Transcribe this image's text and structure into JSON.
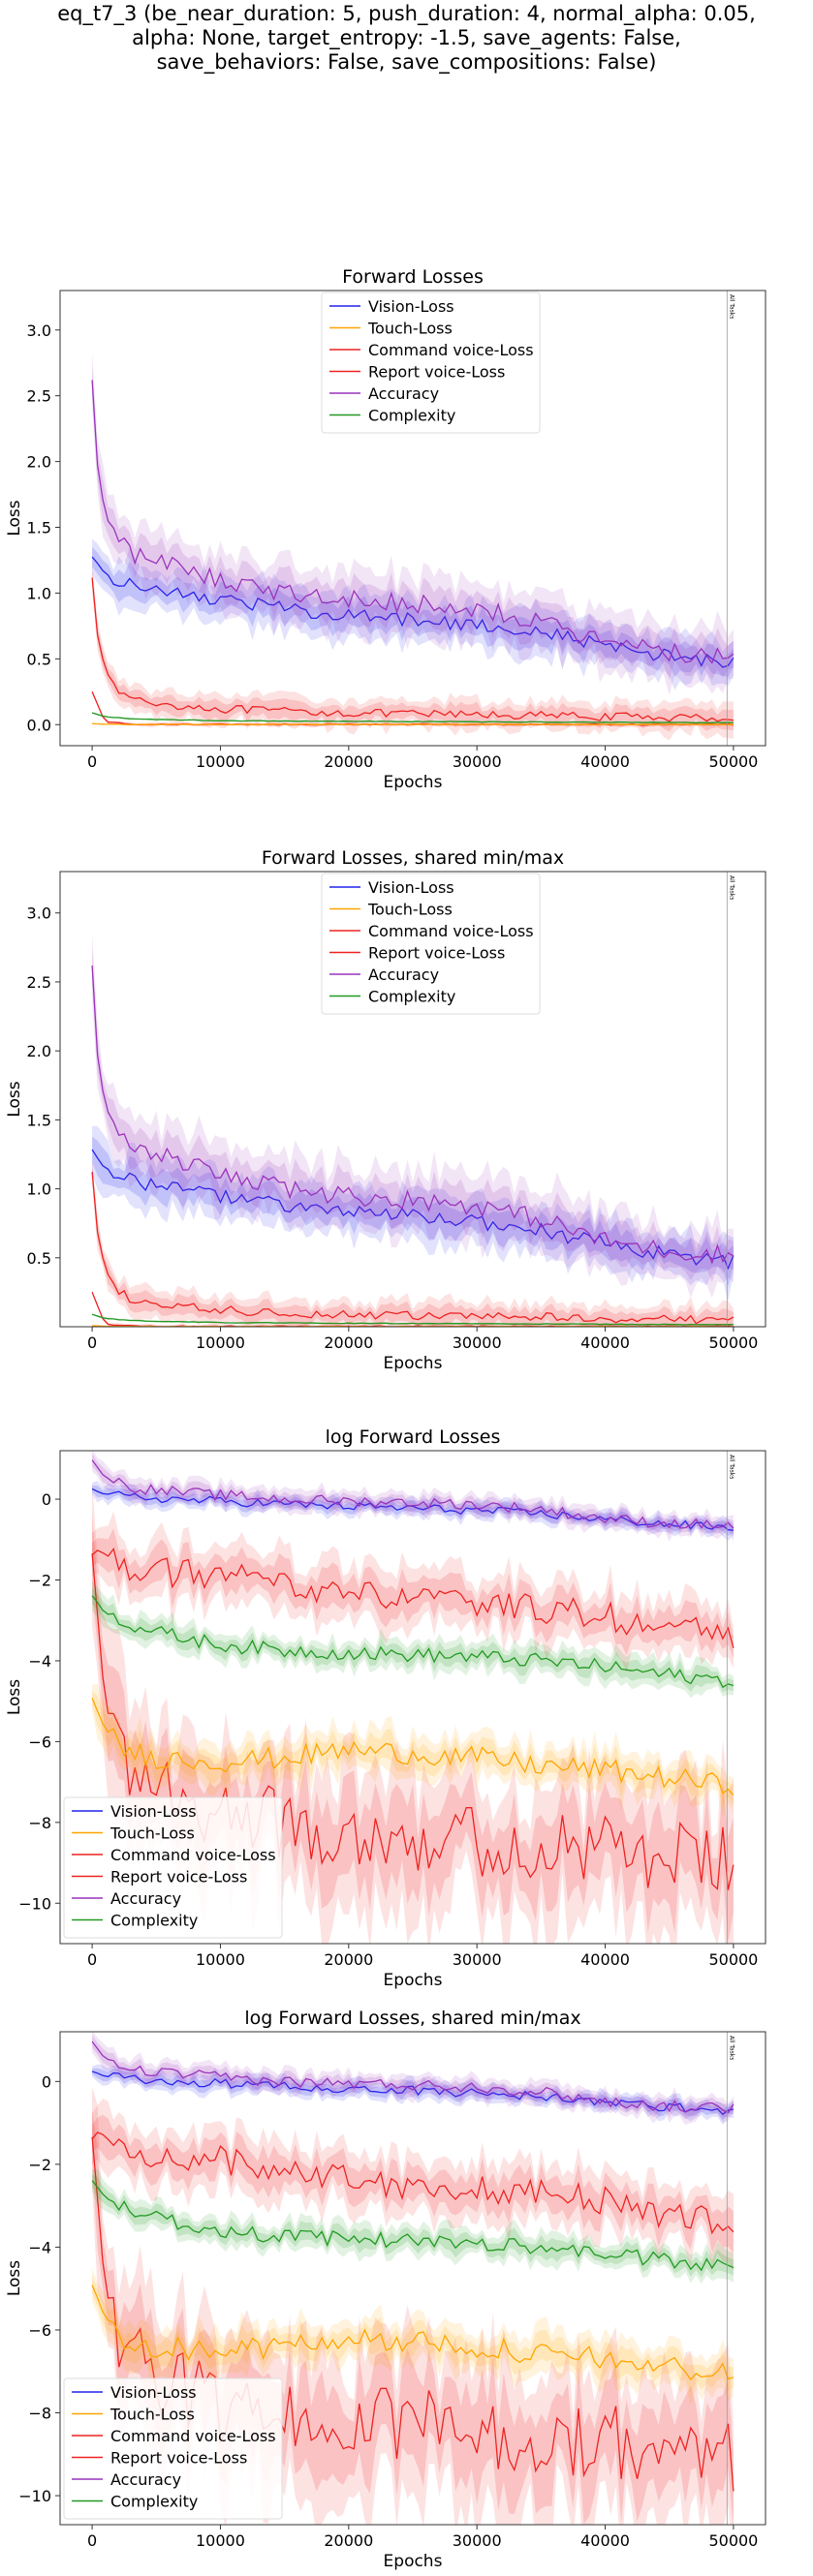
{
  "suptitle": [
    "eq_t7_3 (be_near_duration: 5, push_duration: 4, normal_alpha: 0.05,",
    "alpha: None, target_entropy: -1.5, save_agents: False,",
    "save_behaviors: False, save_compositions: False)"
  ],
  "colors": {
    "vision": "#2222ee",
    "touch": "#ffa500",
    "command": "#ee2222",
    "report": "#ee2222",
    "accuracy": "#9933bb",
    "complexity": "#229922"
  },
  "chart_data": [
    {
      "type": "line",
      "title": "Forward Losses",
      "xlabel": "Epochs",
      "ylabel": "Loss",
      "xlim": [
        -2500,
        52500
      ],
      "ylim": [
        -0.16,
        3.3
      ],
      "xticks": [
        0,
        10000,
        20000,
        30000,
        40000,
        50000
      ],
      "yticks": [
        0.0,
        0.5,
        1.0,
        1.5,
        2.0,
        2.5,
        3.0
      ],
      "ytick_labels": [
        "0.0",
        "0.5",
        "1.0",
        "1.5",
        "2.0",
        "2.5",
        "3.0"
      ],
      "legend_loc": "upper center",
      "vline_label": "All Tasks",
      "vline_x": 49500,
      "log": false,
      "series": [
        {
          "name": "Vision-Loss",
          "key": "vision",
          "x": [
            0,
            1000,
            2500,
            5000,
            10000,
            15000,
            20000,
            25000,
            30000,
            35000,
            40000,
            45000,
            50000
          ],
          "y": [
            1.28,
            1.15,
            1.08,
            1.02,
            0.95,
            0.88,
            0.83,
            0.8,
            0.76,
            0.7,
            0.6,
            0.52,
            0.47
          ],
          "band": 0.15
        },
        {
          "name": "Touch-Loss",
          "key": "touch",
          "x": [
            0,
            1000,
            3000,
            5000,
            10000,
            20000,
            30000,
            40000,
            50000
          ],
          "y": [
            0.008,
            0.003,
            0.002,
            0.0015,
            0.0015,
            0.0013,
            0.0012,
            0.0011,
            0.0009
          ],
          "band": 0.005
        },
        {
          "name": "Command voice-Loss",
          "key": "command",
          "x": [
            0,
            500,
            1500,
            3000,
            5000,
            10000,
            15000,
            20000,
            25000,
            30000,
            35000,
            40000,
            45000,
            50000
          ],
          "y": [
            1.12,
            0.6,
            0.3,
            0.2,
            0.16,
            0.12,
            0.1,
            0.09,
            0.08,
            0.075,
            0.07,
            0.06,
            0.055,
            0.05
          ],
          "band": 0.09
        },
        {
          "name": "Report voice-Loss",
          "key": "report",
          "x": [
            0,
            1000,
            3000,
            5000,
            10000,
            20000,
            30000,
            40000,
            50000
          ],
          "y": [
            0.25,
            0.02,
            0.005,
            0.002,
            0.002,
            0.002,
            0.0015,
            0.0012,
            0.0012
          ],
          "band": 0.012
        },
        {
          "name": "Accuracy",
          "key": "accuracy",
          "x": [
            0,
            500,
            1500,
            3000,
            5000,
            10000,
            15000,
            20000,
            25000,
            30000,
            35000,
            40000,
            45000,
            50000
          ],
          "y": [
            2.62,
            1.85,
            1.45,
            1.3,
            1.25,
            1.1,
            1.0,
            0.95,
            0.92,
            0.88,
            0.78,
            0.62,
            0.55,
            0.52
          ],
          "band": 0.2
        },
        {
          "name": "Complexity",
          "key": "complexity",
          "x": [
            0,
            1000,
            3000,
            5000,
            10000,
            20000,
            30000,
            40000,
            50000
          ],
          "y": [
            0.09,
            0.06,
            0.045,
            0.04,
            0.03,
            0.025,
            0.022,
            0.018,
            0.015
          ],
          "band": 0.006
        }
      ]
    },
    {
      "type": "line",
      "title": "Forward Losses, shared min/max",
      "xlabel": "Epochs",
      "ylabel": "Loss",
      "xlim": [
        -2500,
        52500
      ],
      "ylim": [
        0.0,
        3.3
      ],
      "xticks": [
        0,
        10000,
        20000,
        30000,
        40000,
        50000
      ],
      "yticks": [
        0.5,
        1.0,
        1.5,
        2.0,
        2.5,
        3.0
      ],
      "ytick_labels": [
        "0.5",
        "1.0",
        "1.5",
        "2.0",
        "2.5",
        "3.0"
      ],
      "legend_loc": "upper center",
      "vline_label": "All Tasks",
      "vline_x": 49500,
      "log": false,
      "series": [
        {
          "name": "Vision-Loss",
          "key": "vision",
          "x": [
            0,
            1000,
            2500,
            5000,
            10000,
            15000,
            20000,
            25000,
            30000,
            35000,
            40000,
            45000,
            50000
          ],
          "y": [
            1.28,
            1.15,
            1.08,
            1.02,
            0.95,
            0.88,
            0.83,
            0.8,
            0.76,
            0.7,
            0.6,
            0.52,
            0.47
          ],
          "band": 0.15
        },
        {
          "name": "Touch-Loss",
          "key": "touch",
          "x": [
            0,
            1000,
            3000,
            5000,
            10000,
            20000,
            30000,
            40000,
            50000
          ],
          "y": [
            0.008,
            0.003,
            0.002,
            0.0015,
            0.0015,
            0.0013,
            0.0012,
            0.0011,
            0.0009
          ],
          "band": 0.005
        },
        {
          "name": "Command voice-Loss",
          "key": "command",
          "x": [
            0,
            500,
            1500,
            3000,
            5000,
            10000,
            15000,
            20000,
            25000,
            30000,
            35000,
            40000,
            45000,
            50000
          ],
          "y": [
            1.12,
            0.6,
            0.3,
            0.2,
            0.16,
            0.12,
            0.1,
            0.09,
            0.08,
            0.075,
            0.07,
            0.06,
            0.055,
            0.05
          ],
          "band": 0.09
        },
        {
          "name": "Report voice-Loss",
          "key": "report",
          "x": [
            0,
            1000,
            3000,
            5000,
            10000,
            20000,
            30000,
            40000,
            50000
          ],
          "y": [
            0.25,
            0.02,
            0.005,
            0.002,
            0.002,
            0.002,
            0.0015,
            0.0012,
            0.0012
          ],
          "band": 0.012
        },
        {
          "name": "Accuracy",
          "key": "accuracy",
          "x": [
            0,
            500,
            1500,
            3000,
            5000,
            10000,
            15000,
            20000,
            25000,
            30000,
            35000,
            40000,
            45000,
            50000
          ],
          "y": [
            2.62,
            1.85,
            1.45,
            1.3,
            1.25,
            1.1,
            1.0,
            0.95,
            0.92,
            0.88,
            0.78,
            0.62,
            0.55,
            0.52
          ],
          "band": 0.2
        },
        {
          "name": "Complexity",
          "key": "complexity",
          "x": [
            0,
            1000,
            3000,
            5000,
            10000,
            20000,
            30000,
            40000,
            50000
          ],
          "y": [
            0.09,
            0.06,
            0.045,
            0.04,
            0.03,
            0.025,
            0.022,
            0.018,
            0.015
          ],
          "band": 0.006
        }
      ]
    },
    {
      "type": "line",
      "title": "log Forward Losses",
      "xlabel": "Epochs",
      "ylabel": "Loss",
      "xlim": [
        -2500,
        52500
      ],
      "ylim": [
        -11.0,
        1.2
      ],
      "xticks": [
        0,
        10000,
        20000,
        30000,
        40000,
        50000
      ],
      "yticks": [
        0,
        -2,
        -4,
        -6,
        -8,
        -10
      ],
      "ytick_labels": [
        "0",
        "−2",
        "−4",
        "−6",
        "−8",
        "−10"
      ],
      "legend_loc": "lower left",
      "vline_label": "All Tasks",
      "vline_x": 49500,
      "log": true,
      "series": [
        {
          "name": "Vision-Loss",
          "key": "vision",
          "x": [
            0,
            1000,
            3000,
            5000,
            10000,
            15000,
            20000,
            25000,
            30000,
            35000,
            40000,
            45000,
            50000
          ],
          "y": [
            0.25,
            0.12,
            0.06,
            0.02,
            -0.05,
            -0.12,
            -0.18,
            -0.22,
            -0.28,
            -0.36,
            -0.5,
            -0.62,
            -0.72
          ],
          "band": 0.18
        },
        {
          "name": "Touch-Loss",
          "key": "touch",
          "x": [
            0,
            1000,
            2500,
            5000,
            10000,
            15000,
            20000,
            25000,
            30000,
            35000,
            40000,
            45000,
            50000
          ],
          "y": [
            -4.9,
            -5.7,
            -6.2,
            -6.4,
            -6.5,
            -6.4,
            -6.2,
            -6.3,
            -6.4,
            -6.6,
            -6.7,
            -6.9,
            -7.1
          ],
          "band": 0.45
        },
        {
          "name": "Command voice-Loss",
          "key": "command",
          "x": [
            0,
            500,
            1500,
            3000,
            5000,
            10000,
            15000,
            20000,
            25000,
            30000,
            35000,
            40000,
            45000,
            50000
          ],
          "y": [
            -1.4,
            -1.2,
            -1.5,
            -1.7,
            -1.8,
            -1.9,
            -2.1,
            -2.3,
            -2.5,
            -2.6,
            -2.7,
            -2.9,
            -3.2,
            -3.4
          ],
          "band": 0.6
        },
        {
          "name": "Report voice-Loss",
          "key": "report",
          "x": [
            0,
            1000,
            2500,
            5000,
            10000,
            15000,
            20000,
            25000,
            30000,
            35000,
            40000,
            45000,
            50000
          ],
          "y": [
            -1.4,
            -5.0,
            -6.5,
            -7.2,
            -7.8,
            -8.0,
            -8.2,
            -8.3,
            -8.5,
            -8.6,
            -8.7,
            -8.9,
            -9.0
          ],
          "band": 1.5
        },
        {
          "name": "Accuracy",
          "key": "accuracy",
          "x": [
            0,
            1000,
            3000,
            5000,
            10000,
            15000,
            20000,
            25000,
            30000,
            35000,
            40000,
            45000,
            50000
          ],
          "y": [
            0.96,
            0.55,
            0.3,
            0.22,
            0.1,
            0.0,
            -0.05,
            -0.08,
            -0.13,
            -0.25,
            -0.48,
            -0.6,
            -0.65
          ],
          "band": 0.22
        },
        {
          "name": "Complexity",
          "key": "complexity",
          "x": [
            0,
            1000,
            3000,
            5000,
            10000,
            15000,
            20000,
            25000,
            30000,
            35000,
            40000,
            45000,
            50000
          ],
          "y": [
            -2.4,
            -2.8,
            -3.1,
            -3.3,
            -3.6,
            -3.75,
            -3.8,
            -3.85,
            -3.9,
            -4.0,
            -4.15,
            -4.35,
            -4.5
          ],
          "band": 0.3
        }
      ]
    },
    {
      "type": "line",
      "title": "log Forward Losses, shared min/max",
      "xlabel": "Epochs",
      "ylabel": "Loss",
      "xlim": [
        -2500,
        52500
      ],
      "ylim": [
        -10.7,
        1.2
      ],
      "xticks": [
        0,
        10000,
        20000,
        30000,
        40000,
        50000
      ],
      "yticks": [
        0,
        -2,
        -4,
        -6,
        -8,
        -10
      ],
      "ytick_labels": [
        "0",
        "−2",
        "−4",
        "−6",
        "−8",
        "−10"
      ],
      "legend_loc": "lower left",
      "vline_label": "All Tasks",
      "vline_x": 49500,
      "log": true,
      "series": [
        {
          "name": "Vision-Loss",
          "key": "vision",
          "x": [
            0,
            1000,
            3000,
            5000,
            10000,
            15000,
            20000,
            25000,
            30000,
            35000,
            40000,
            45000,
            50000
          ],
          "y": [
            0.25,
            0.12,
            0.06,
            0.02,
            -0.05,
            -0.12,
            -0.18,
            -0.22,
            -0.28,
            -0.36,
            -0.5,
            -0.62,
            -0.72
          ],
          "band": 0.18
        },
        {
          "name": "Touch-Loss",
          "key": "touch",
          "x": [
            0,
            1000,
            2500,
            5000,
            10000,
            15000,
            20000,
            25000,
            30000,
            35000,
            40000,
            45000,
            50000
          ],
          "y": [
            -4.9,
            -5.7,
            -6.2,
            -6.4,
            -6.5,
            -6.4,
            -6.2,
            -6.3,
            -6.4,
            -6.6,
            -6.7,
            -6.9,
            -7.1
          ],
          "band": 0.45
        },
        {
          "name": "Command voice-Loss",
          "key": "command",
          "x": [
            0,
            500,
            1500,
            3000,
            5000,
            10000,
            15000,
            20000,
            25000,
            30000,
            35000,
            40000,
            45000,
            50000
          ],
          "y": [
            -1.4,
            -1.2,
            -1.5,
            -1.7,
            -1.8,
            -1.9,
            -2.1,
            -2.3,
            -2.5,
            -2.6,
            -2.7,
            -2.9,
            -3.2,
            -3.4
          ],
          "band": 0.6
        },
        {
          "name": "Report voice-Loss",
          "key": "report",
          "x": [
            0,
            1000,
            2500,
            5000,
            10000,
            15000,
            20000,
            25000,
            30000,
            35000,
            40000,
            45000,
            50000
          ],
          "y": [
            -1.4,
            -5.0,
            -6.5,
            -7.2,
            -7.8,
            -8.0,
            -8.2,
            -8.3,
            -8.5,
            -8.6,
            -8.7,
            -8.9,
            -9.0
          ],
          "band": 1.5
        },
        {
          "name": "Accuracy",
          "key": "accuracy",
          "x": [
            0,
            1000,
            3000,
            5000,
            10000,
            15000,
            20000,
            25000,
            30000,
            35000,
            40000,
            45000,
            50000
          ],
          "y": [
            0.96,
            0.55,
            0.3,
            0.22,
            0.1,
            0.0,
            -0.05,
            -0.08,
            -0.13,
            -0.25,
            -0.48,
            -0.6,
            -0.65
          ],
          "band": 0.22
        },
        {
          "name": "Complexity",
          "key": "complexity",
          "x": [
            0,
            1000,
            3000,
            5000,
            10000,
            15000,
            20000,
            25000,
            30000,
            35000,
            40000,
            45000,
            50000
          ],
          "y": [
            -2.4,
            -2.8,
            -3.1,
            -3.3,
            -3.6,
            -3.75,
            -3.8,
            -3.85,
            -3.9,
            -4.0,
            -4.15,
            -4.35,
            -4.5
          ],
          "band": 0.3
        }
      ]
    }
  ]
}
